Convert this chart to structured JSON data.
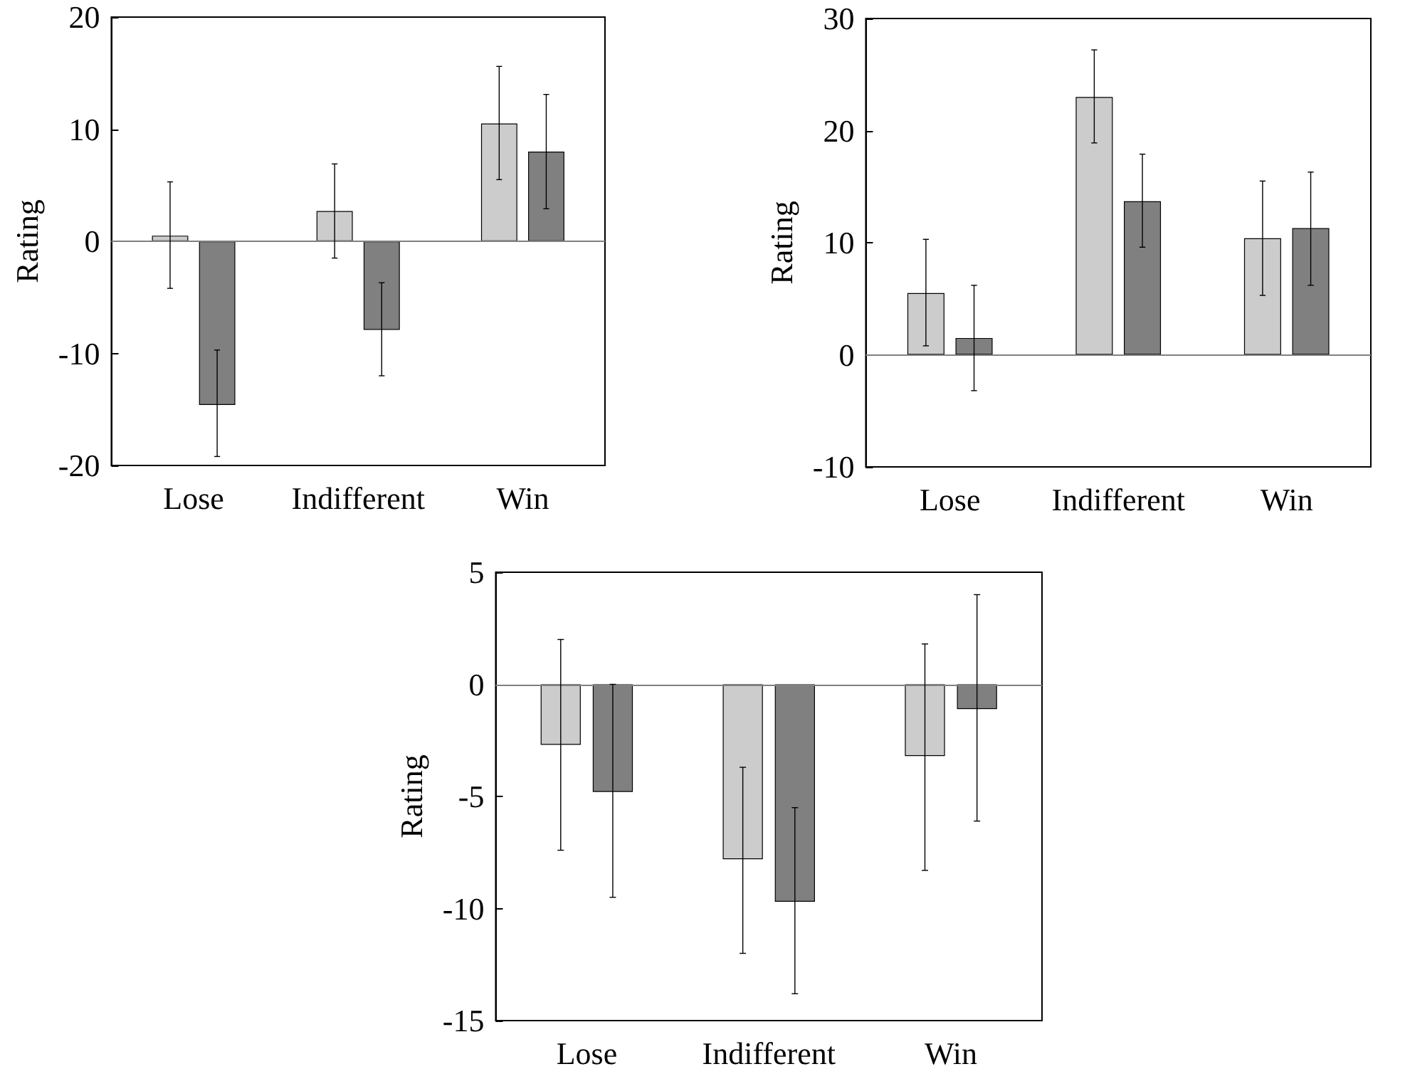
{
  "chart_data": [
    {
      "type": "bar",
      "ylabel": "Rating",
      "categories": [
        "Lose",
        "Indifferent",
        "Win"
      ],
      "ylim": [
        -20,
        20
      ],
      "yticks": [
        -20,
        -10,
        0,
        10,
        20
      ],
      "ref_lines": [
        {
          "axis": "y",
          "value": 0,
          "color": "#808080"
        }
      ],
      "series": [
        {
          "color": "#cccccc",
          "values": [
            0.5,
            2.7,
            10.5
          ],
          "errors": [
            [
              -4.2,
              5.3
            ],
            [
              -1.5,
              6.9
            ],
            [
              5.5,
              15.6
            ]
          ]
        },
        {
          "color": "#808080",
          "values": [
            -14.6,
            -7.9,
            8.0
          ],
          "errors": [
            [
              -19.2,
              -9.7
            ],
            [
              -12.0,
              -3.7
            ],
            [
              2.9,
              13.1
            ]
          ]
        }
      ]
    },
    {
      "type": "bar",
      "ylabel": "Rating",
      "categories": [
        "Lose",
        "Indifferent",
        "Win"
      ],
      "ylim": [
        -10,
        30
      ],
      "yticks": [
        -10,
        0,
        10,
        20,
        30
      ],
      "ref_lines": [
        {
          "axis": "y",
          "value": 0,
          "color": "#808080"
        }
      ],
      "series": [
        {
          "color": "#cccccc",
          "values": [
            5.5,
            23.0,
            10.4
          ],
          "errors": [
            [
              0.8,
              10.3
            ],
            [
              18.9,
              27.2
            ],
            [
              5.3,
              15.5
            ]
          ]
        },
        {
          "color": "#808080",
          "values": [
            1.5,
            13.7,
            11.3
          ],
          "errors": [
            [
              -3.2,
              6.2
            ],
            [
              9.6,
              17.9
            ],
            [
              6.2,
              16.3
            ]
          ]
        }
      ]
    },
    {
      "type": "bar",
      "ylabel": "Rating",
      "categories": [
        "Lose",
        "Indifferent",
        "Win"
      ],
      "ylim": [
        -15,
        5
      ],
      "yticks": [
        -15,
        -10,
        -5,
        0,
        5
      ],
      "ref_lines": [
        {
          "axis": "y",
          "value": 0,
          "color": "#808080"
        }
      ],
      "series": [
        {
          "color": "#cccccc",
          "values": [
            -2.7,
            -7.8,
            -3.2
          ],
          "errors": [
            [
              -7.4,
              2.0
            ],
            [
              -12.0,
              -3.7
            ],
            [
              -8.3,
              1.8
            ]
          ]
        },
        {
          "color": "#808080",
          "values": [
            -4.8,
            -9.7,
            -1.1
          ],
          "errors": [
            [
              -9.5,
              0.0
            ],
            [
              -13.8,
              -5.5
            ],
            [
              -6.1,
              4.0
            ]
          ]
        }
      ]
    }
  ]
}
